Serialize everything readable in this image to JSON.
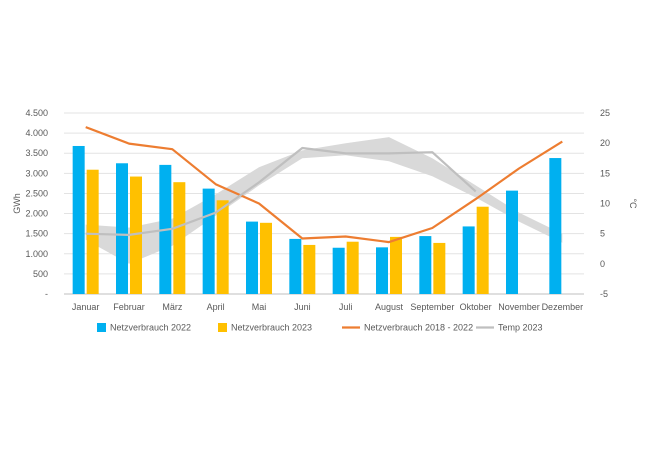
{
  "chart_data": {
    "type": "bar",
    "categories": [
      "Januar",
      "Februar",
      "März",
      "April",
      "Mai",
      "Juni",
      "Juli",
      "August",
      "September",
      "Oktober",
      "November",
      "Dezember"
    ],
    "series": [
      {
        "name": "Netzverbrauch 2022",
        "kind": "bar",
        "axis": "left",
        "color": "#00B0F0",
        "values": [
          3680,
          3250,
          3210,
          2620,
          1800,
          1370,
          1150,
          1160,
          1440,
          1680,
          2570,
          3380
        ]
      },
      {
        "name": "Netzverbrauch 2023",
        "kind": "bar",
        "axis": "left",
        "color": "#FFC000",
        "values": [
          3090,
          2920,
          2780,
          2330,
          1770,
          1220,
          1300,
          1420,
          1270,
          2170,
          null,
          null
        ]
      },
      {
        "name": "Netzverbrauch 2018 - 2022",
        "kind": "line",
        "axis": "left",
        "color": "#ED7D31",
        "values": [
          4150,
          3740,
          3600,
          2730,
          2250,
          1380,
          1430,
          1290,
          1640,
          2360,
          3120,
          3790
        ]
      },
      {
        "name": "Temp 2023",
        "kind": "line",
        "axis": "right",
        "color": "#BFBFBF",
        "values": [
          5.0,
          4.8,
          5.8,
          8.5,
          13.5,
          19.2,
          18.3,
          18.3,
          18.5,
          12.0,
          null,
          null
        ]
      }
    ],
    "temperature_band": {
      "color": "#D9D9D9",
      "upper": [
        6.5,
        6.0,
        7.5,
        11.5,
        16.0,
        18.8,
        20.0,
        21.0,
        17.5,
        13.0,
        8.5,
        5.0
      ],
      "lower": [
        4.0,
        0.0,
        3.0,
        8.0,
        13.0,
        17.5,
        18.0,
        17.0,
        14.5,
        11.0,
        7.0,
        3.5
      ]
    },
    "y_left": {
      "label": "GWh",
      "ylim": [
        0,
        4500
      ],
      "ticks": [
        0,
        500,
        1000,
        1500,
        2000,
        2500,
        3000,
        3500,
        4000,
        4500
      ],
      "tick_labels": [
        "-",
        "500",
        "1.000",
        "1.500",
        "2.000",
        "2.500",
        "3.000",
        "3.500",
        "4.000",
        "4.500"
      ]
    },
    "y_right": {
      "label": "°C",
      "ylim": [
        -5,
        25
      ],
      "ticks": [
        -5,
        0,
        5,
        10,
        15,
        20,
        25
      ],
      "tick_labels": [
        "-5",
        "0",
        "5",
        "10",
        "15",
        "20",
        "25"
      ]
    },
    "grid": true,
    "legend_position": "bottom"
  }
}
